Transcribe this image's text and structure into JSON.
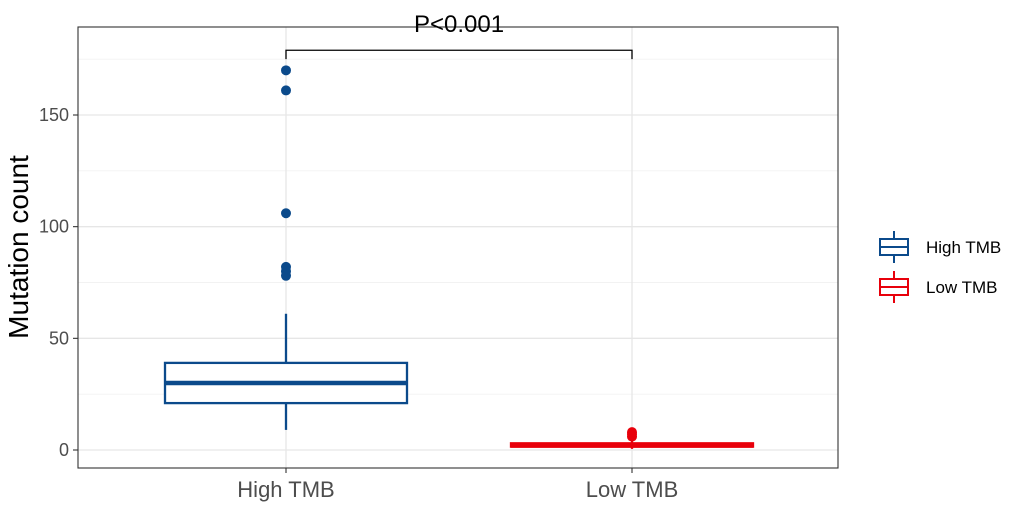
{
  "chart_data": {
    "type": "boxplot",
    "title": "",
    "ylabel": "Mutation count",
    "xlabel": "",
    "ylim": [
      -5,
      185
    ],
    "yticks": [
      0,
      50,
      100,
      150
    ],
    "grid": true,
    "legend_position": "right",
    "categories": [
      "High TMB",
      "Low TMB"
    ],
    "groups": [
      {
        "name": "High TMB",
        "color": "#0B4A8B",
        "whisker_low": 9,
        "q1": 21,
        "median": 30,
        "q3": 39,
        "whisker_high": 61,
        "outliers": [
          170,
          161,
          106,
          82,
          80,
          78
        ]
      },
      {
        "name": "Low TMB",
        "color": "#E8000B",
        "whisker_low": 0.5,
        "q1": 1.5,
        "median": 2,
        "q3": 3,
        "whisker_high": 5,
        "outliers": [
          6,
          7,
          8
        ]
      }
    ],
    "annotation": {
      "text": "P<0.001",
      "bracket_y": 179,
      "bracket_drop": 175
    }
  }
}
